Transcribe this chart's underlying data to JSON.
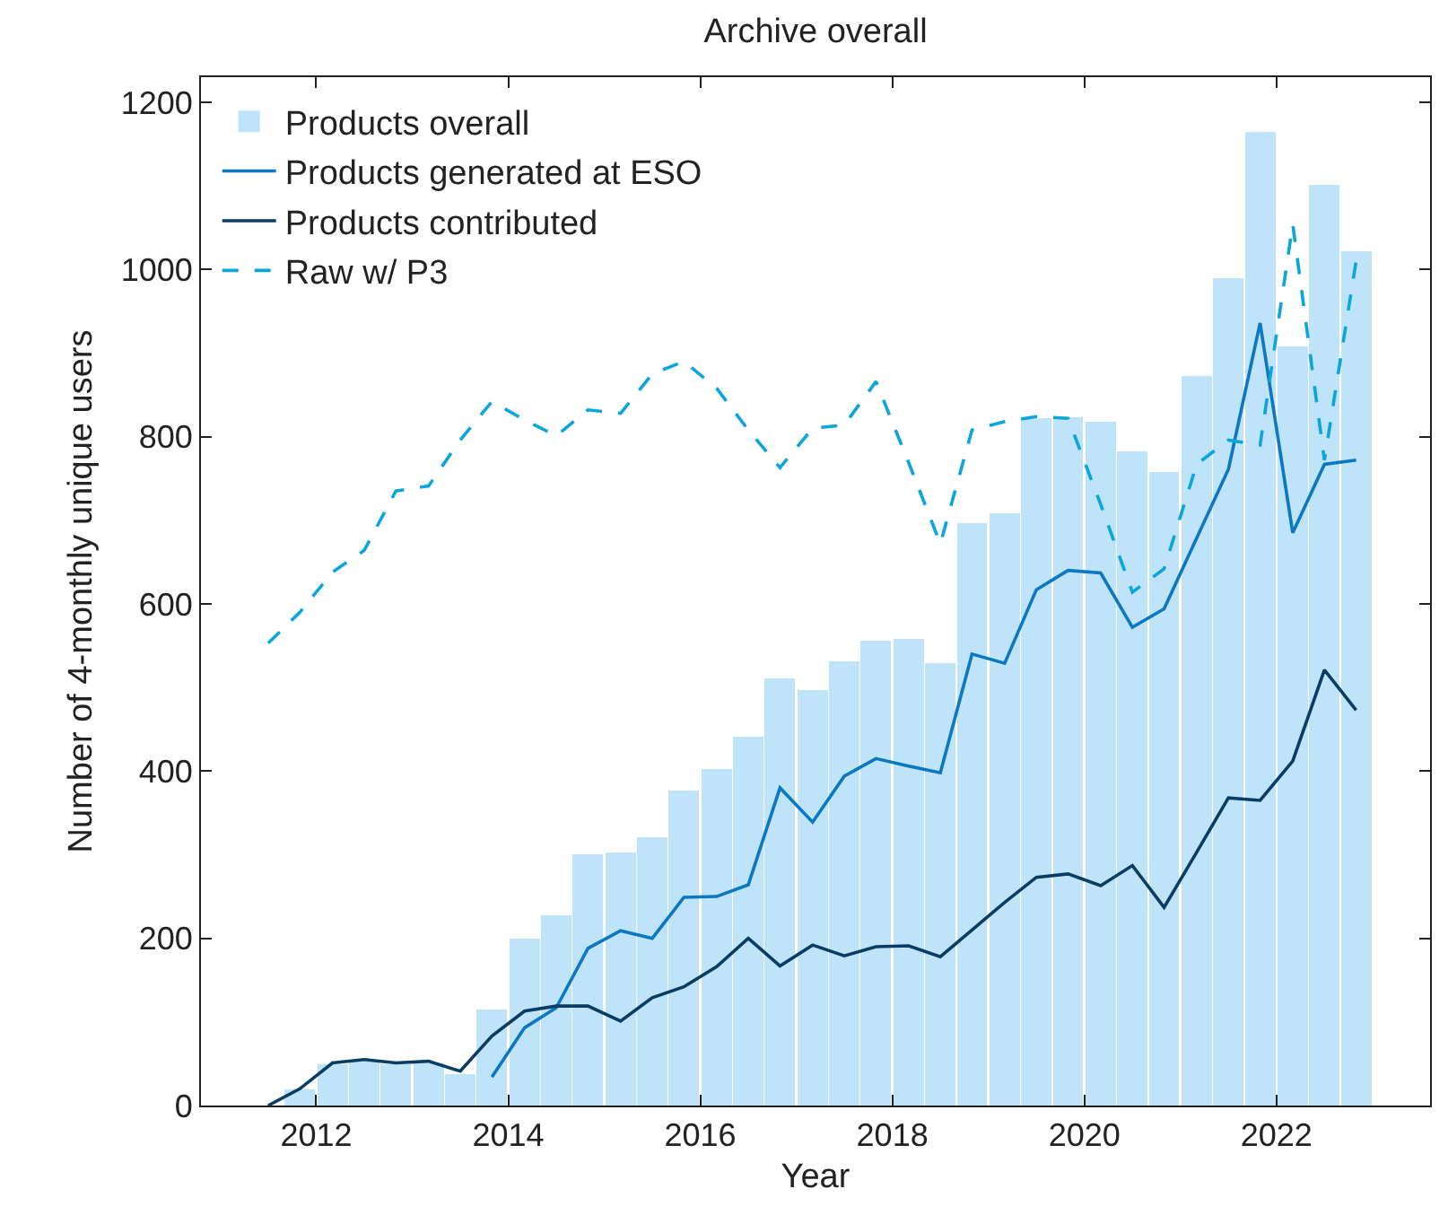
{
  "chart_data": {
    "type": "line",
    "title": "Archive overall",
    "xlabel": "Year",
    "ylabel": "Number of 4-monthly unique users",
    "x": [
      2011.5,
      2011.83,
      2012.17,
      2012.5,
      2012.83,
      2013.17,
      2013.5,
      2013.83,
      2014.17,
      2014.5,
      2014.83,
      2015.17,
      2015.5,
      2015.83,
      2016.17,
      2016.5,
      2016.83,
      2017.17,
      2017.5,
      2017.83,
      2018.17,
      2018.5,
      2018.83,
      2019.17,
      2019.5,
      2019.83,
      2020.17,
      2020.5,
      2020.83,
      2021.17,
      2021.5,
      2021.83,
      2022.17,
      2022.5,
      2022.83
    ],
    "series": [
      {
        "name": "Products overall",
        "type": "bar",
        "color": "#bfe3f8",
        "values": [
          0,
          19,
          49,
          53,
          49,
          50,
          38,
          115,
          200,
          228,
          301,
          303,
          321,
          377,
          403,
          441,
          511,
          497,
          531,
          556,
          558,
          529,
          697,
          708,
          822,
          823,
          818,
          782,
          758,
          873,
          990,
          1165,
          908,
          1101,
          1022
        ]
      },
      {
        "name": "Products generated at ESO",
        "color": "#0a78c2",
        "line_style": "solid",
        "values": [
          null,
          null,
          null,
          null,
          null,
          null,
          null,
          34,
          93,
          117,
          188,
          209,
          200,
          249,
          250,
          264,
          380,
          339,
          394,
          415,
          406,
          398,
          540,
          529,
          617,
          640,
          637,
          572,
          594,
          679,
          761,
          936,
          685,
          767,
          772
        ]
      },
      {
        "name": "Products contributed",
        "color": "#0a3d66",
        "line_style": "solid",
        "values": [
          0,
          20,
          51,
          55,
          51,
          53,
          41,
          83,
          113,
          119,
          119,
          101,
          129,
          142,
          166,
          200,
          167,
          192,
          179,
          190,
          191,
          178,
          210,
          243,
          273,
          277,
          263,
          287,
          237,
          303,
          368,
          365,
          412,
          521,
          473
        ]
      },
      {
        "name": "Raw w/ P3",
        "color": "#0aa6dc",
        "line_style": "dashed",
        "values": [
          553,
          590,
          638,
          664,
          735,
          741,
          796,
          842,
          820,
          801,
          832,
          828,
          875,
          890,
          858,
          808,
          763,
          810,
          814,
          866,
          769,
          672,
          808,
          818,
          824,
          822,
          719,
          614,
          642,
          767,
          796,
          790,
          1054,
          772,
          1010
        ]
      }
    ],
    "xlim": [
      2010.8,
      2023.6
    ],
    "xticks": [
      2012,
      2014,
      2016,
      2018,
      2020,
      2022
    ],
    "ylim": [
      0,
      1230
    ],
    "yticks": [
      0,
      200,
      400,
      600,
      800,
      1000,
      1200
    ],
    "grid": false,
    "legend": "top left",
    "marker": "none"
  }
}
